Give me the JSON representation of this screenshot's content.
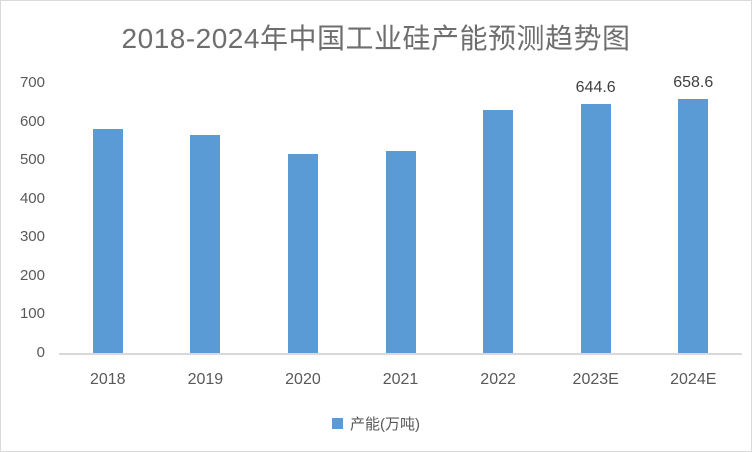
{
  "title": "2018-2024年中国工业硅产能预测趋势图",
  "colors": {
    "bar": "#5b9bd5",
    "title_text": "#6e6e6e",
    "axis_text": "#595959",
    "data_label_text": "#404040",
    "axis_line": "#d9d9d9",
    "frame_border": "#d9d9d9",
    "background": "#ffffff"
  },
  "legend": {
    "label": "产能(万吨)",
    "swatch_color": "#5b9bd5"
  },
  "chart_data": {
    "type": "bar",
    "title": "2018-2024年中国工业硅产能预测趋势图",
    "categories": [
      "2018",
      "2019",
      "2020",
      "2021",
      "2022",
      "2023E",
      "2024E"
    ],
    "values": [
      580,
      565,
      515,
      525,
      629,
      644.6,
      658.6
    ],
    "data_labels": [
      null,
      null,
      null,
      null,
      null,
      "644.6",
      "658.6"
    ],
    "series_name": "产能(万吨)",
    "xlabel": "",
    "ylabel": "",
    "ylim": [
      0,
      700
    ],
    "yticks": [
      0,
      100,
      200,
      300,
      400,
      500,
      600,
      700
    ],
    "grid": false,
    "legend_position": "bottom"
  }
}
